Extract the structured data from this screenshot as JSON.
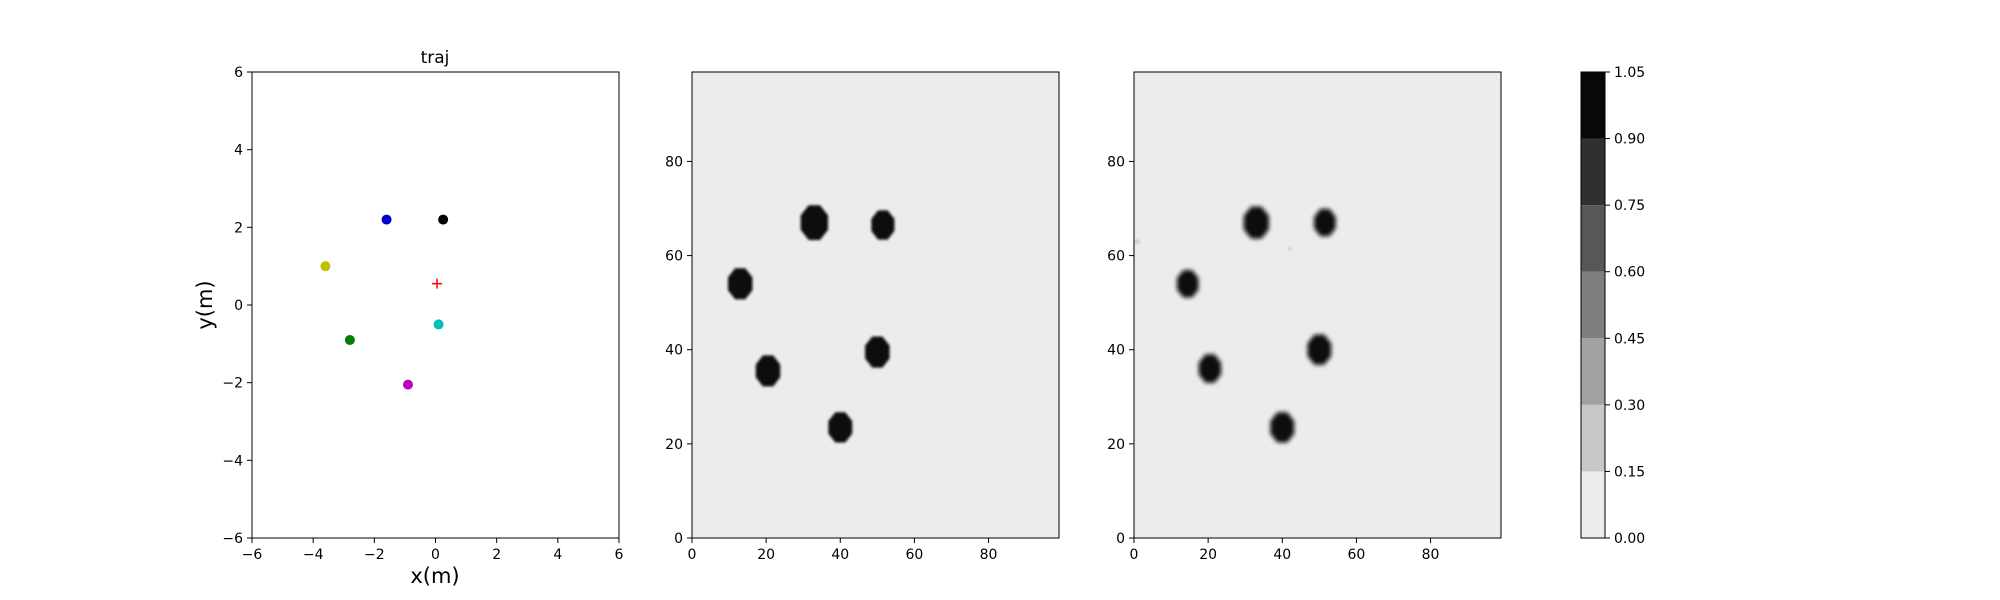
{
  "chart_data": [
    {
      "type": "scatter",
      "title": "traj",
      "xlabel": "x(m)",
      "ylabel": "y(m)",
      "xlim": [
        -6,
        6
      ],
      "ylim": [
        -6,
        6
      ],
      "xticks": [
        "−6",
        "−4",
        "−2",
        "0",
        "2",
        "4",
        "6"
      ],
      "yticks": [
        "−6",
        "−4",
        "−2",
        "0",
        "2",
        "4",
        "6"
      ],
      "grid": false,
      "points": [
        {
          "x": -1.6,
          "y": 2.2,
          "color": "#0000cc",
          "marker": "circle"
        },
        {
          "x": 0.25,
          "y": 2.2,
          "color": "#000000",
          "marker": "circle"
        },
        {
          "x": -3.6,
          "y": 1.0,
          "color": "#bfbf00",
          "marker": "circle"
        },
        {
          "x": 0.1,
          "y": -0.5,
          "color": "#00bfbf",
          "marker": "circle"
        },
        {
          "x": -2.8,
          "y": -0.9,
          "color": "#007f00",
          "marker": "circle"
        },
        {
          "x": -0.9,
          "y": -2.05,
          "color": "#bf00bf",
          "marker": "circle"
        },
        {
          "x": 0.05,
          "y": 0.55,
          "color": "#ff0000",
          "marker": "plus"
        }
      ]
    },
    {
      "type": "heatmap",
      "xlim": [
        0,
        99
      ],
      "ylim": [
        0,
        99
      ],
      "xticks": [
        "0",
        "20",
        "40",
        "60",
        "80"
      ],
      "yticks": [
        "0",
        "20",
        "40",
        "60",
        "80"
      ],
      "background_value": 0.05,
      "blobs": [
        {
          "x": 33,
          "y": 67,
          "r": 3.8,
          "value": 1.0
        },
        {
          "x": 51.5,
          "y": 66.5,
          "r": 3.2,
          "value": 1.0
        },
        {
          "x": 13,
          "y": 54,
          "r": 3.4,
          "value": 1.0
        },
        {
          "x": 20.5,
          "y": 35.5,
          "r": 3.4,
          "value": 1.0
        },
        {
          "x": 50,
          "y": 39.5,
          "r": 3.4,
          "value": 1.0
        },
        {
          "x": 40,
          "y": 23.5,
          "r": 3.3,
          "value": 1.0
        }
      ]
    },
    {
      "type": "heatmap",
      "xlim": [
        0,
        99
      ],
      "ylim": [
        0,
        99
      ],
      "xticks": [
        "0",
        "20",
        "40",
        "60",
        "80"
      ],
      "yticks": [
        "0",
        "20",
        "40",
        "60",
        "80"
      ],
      "background_value": 0.05,
      "blobs": [
        {
          "x": 33,
          "y": 67,
          "r": 3.5,
          "value": 0.98
        },
        {
          "x": 51.5,
          "y": 67,
          "r": 3.0,
          "value": 0.95
        },
        {
          "x": 14.5,
          "y": 54,
          "r": 3.0,
          "value": 0.95
        },
        {
          "x": 20.5,
          "y": 36,
          "r": 3.1,
          "value": 0.95
        },
        {
          "x": 50,
          "y": 40,
          "r": 3.3,
          "value": 0.98
        },
        {
          "x": 40,
          "y": 23.5,
          "r": 3.3,
          "value": 0.98
        },
        {
          "x": 0.8,
          "y": 63,
          "r": 0.8,
          "value": 0.25
        },
        {
          "x": 42,
          "y": 61.5,
          "r": 0.4,
          "value": 0.2
        }
      ]
    }
  ],
  "colorbar": {
    "levels": [
      0.0,
      0.15,
      0.3,
      0.45,
      0.6,
      0.75,
      0.9,
      1.05
    ],
    "tick_labels": [
      "0.00",
      "0.15",
      "0.30",
      "0.45",
      "0.60",
      "0.75",
      "0.90",
      "1.05"
    ],
    "colors": [
      "#ececec",
      "#c8c8c8",
      "#a2a2a2",
      "#7e7e7e",
      "#575757",
      "#303030",
      "#080808"
    ]
  }
}
